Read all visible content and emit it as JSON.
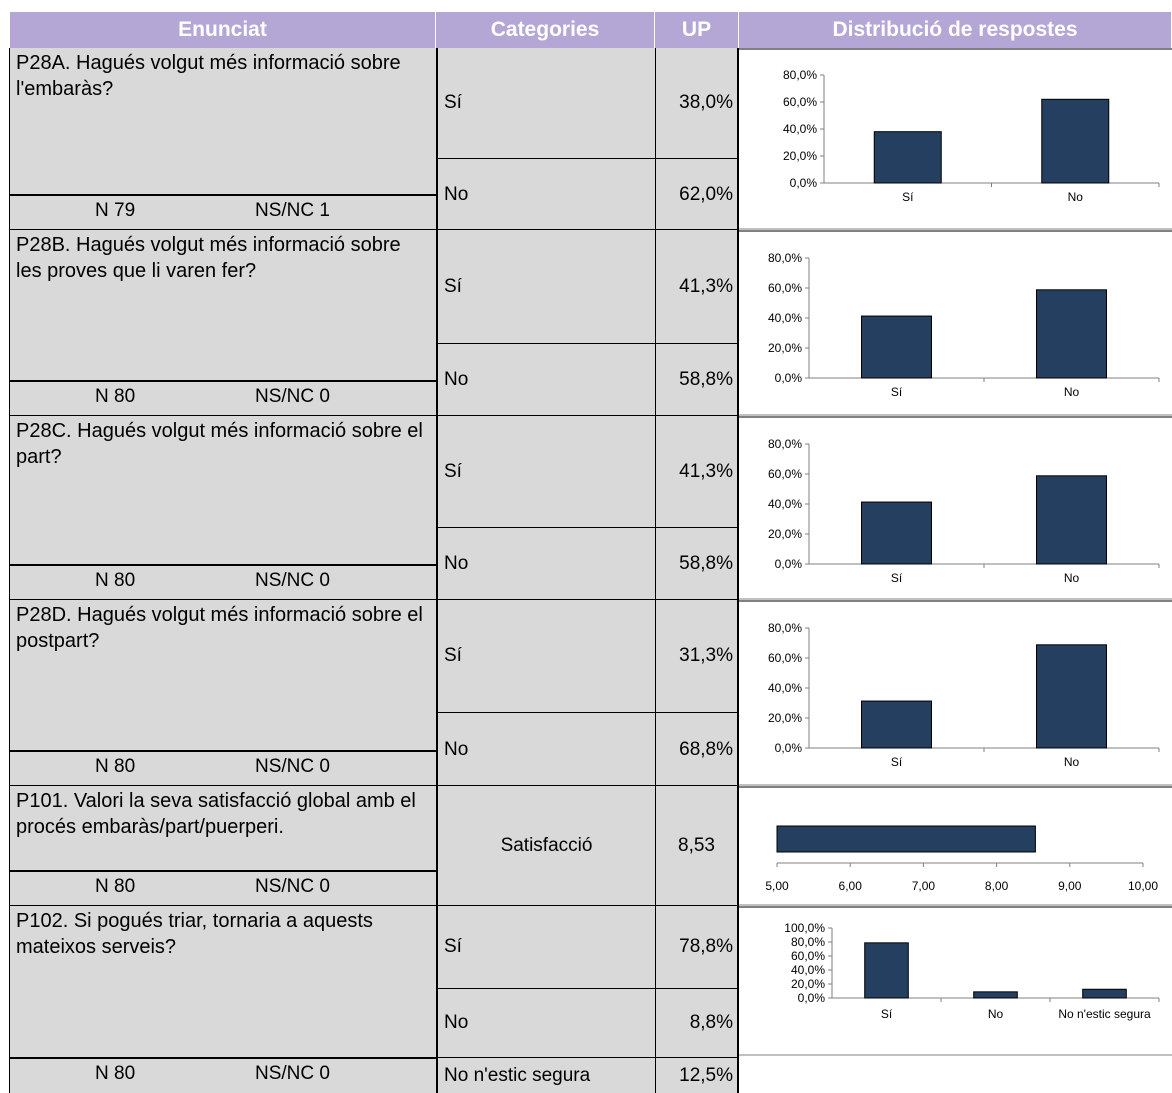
{
  "header": {
    "enunciat": "Enunciat",
    "categories": "Categories",
    "up": "UP",
    "distribucio": "Distribució de respostes"
  },
  "rows": [
    {
      "question": "P28A. Hagués volgut més informació sobre l'embaràs?",
      "n": "N 79",
      "nsnc": "NS/NC 1",
      "cats": [
        {
          "label": "Sí",
          "value": "38,0%"
        },
        {
          "label": "No",
          "value": "62,0%"
        }
      ]
    },
    {
      "question": "P28B. Hagués volgut més informació sobre les proves que li varen fer?",
      "n": "N 80",
      "nsnc": "NS/NC 0",
      "cats": [
        {
          "label": "Sí",
          "value": "41,3%"
        },
        {
          "label": "No",
          "value": "58,8%"
        }
      ]
    },
    {
      "question": "P28C. Hagués volgut més informació sobre el part?",
      "n": "N 80",
      "nsnc": "NS/NC 0",
      "cats": [
        {
          "label": "Sí",
          "value": "41,3%"
        },
        {
          "label": "No",
          "value": "58,8%"
        }
      ]
    },
    {
      "question": "P28D. Hagués volgut més informació sobre el postpart?",
      "n": "N 80",
      "nsnc": "NS/NC 0",
      "cats": [
        {
          "label": "Sí",
          "value": "31,3%"
        },
        {
          "label": "No",
          "value": "68,8%"
        }
      ]
    },
    {
      "question": "P101. Valori la seva satisfacció global amb el procés embaràs/part/puerperi.",
      "n": "N 80",
      "nsnc": "NS/NC 0",
      "cats": [
        {
          "label": "Satisfacció",
          "value": "8,53"
        }
      ]
    },
    {
      "question": "P102. Si pogués triar, tornaria a aquests mateixos serveis?",
      "n": "N 80",
      "nsnc": "NS/NC 0",
      "cats": [
        {
          "label": "Sí",
          "value": "78,8%"
        },
        {
          "label": "No",
          "value": "8,8%"
        },
        {
          "label": "No n'estic segura",
          "value": "12,5%"
        }
      ]
    }
  ],
  "chart_data": [
    {
      "type": "bar",
      "categories": [
        "Sí",
        "No"
      ],
      "values": [
        38.0,
        62.0
      ],
      "ylim": [
        0,
        80
      ],
      "yticks": [
        "0,0%",
        "20,0%",
        "40,0%",
        "60,0%",
        "80,0%"
      ]
    },
    {
      "type": "bar",
      "categories": [
        "Sí",
        "No"
      ],
      "values": [
        41.3,
        58.8
      ],
      "ylim": [
        0,
        80
      ],
      "yticks": [
        "0,0%",
        "20,0%",
        "40,0%",
        "60,0%",
        "80,0%"
      ]
    },
    {
      "type": "bar",
      "categories": [
        "Sí",
        "No"
      ],
      "values": [
        41.3,
        58.8
      ],
      "ylim": [
        0,
        80
      ],
      "yticks": [
        "0,0%",
        "20,0%",
        "40,0%",
        "60,0%",
        "80,0%"
      ]
    },
    {
      "type": "bar",
      "categories": [
        "Sí",
        "No"
      ],
      "values": [
        31.3,
        68.8
      ],
      "ylim": [
        0,
        80
      ],
      "yticks": [
        "0,0%",
        "20,0%",
        "40,0%",
        "60,0%",
        "80,0%"
      ]
    },
    {
      "type": "bar",
      "orientation": "horizontal",
      "categories": [
        "Satisfacció"
      ],
      "values": [
        8.53
      ],
      "xlim": [
        5,
        10
      ],
      "xticks": [
        "5,00",
        "6,00",
        "7,00",
        "8,00",
        "9,00",
        "10,00"
      ]
    },
    {
      "type": "bar",
      "categories": [
        "Sí",
        "No",
        "No n'estic segura"
      ],
      "values": [
        78.8,
        8.8,
        12.5
      ],
      "ylim": [
        0,
        100
      ],
      "yticks": [
        "0,0%",
        "20,0%",
        "40,0%",
        "60,0%",
        "80,0%",
        "100,0%"
      ]
    }
  ],
  "colors": {
    "bar": "#243f60",
    "header": "#b4a7d6",
    "cell": "#d9d9d9"
  }
}
